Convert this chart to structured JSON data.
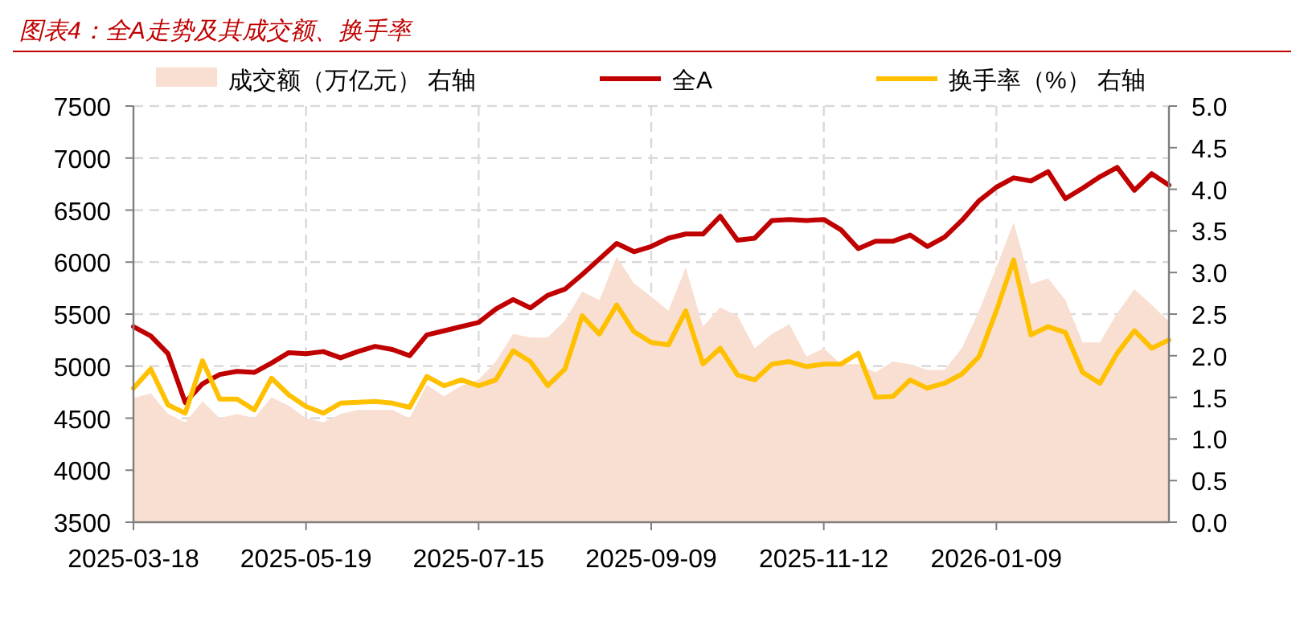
{
  "chart_data": {
    "type": "line",
    "title": "图表4：全A走势及其成交额、换手率",
    "categories": [
      "2025-03-18",
      null,
      null,
      null,
      null,
      null,
      null,
      null,
      null,
      null,
      "2025-05-19",
      null,
      null,
      null,
      null,
      null,
      null,
      null,
      null,
      null,
      "2025-07-15",
      null,
      null,
      null,
      null,
      null,
      null,
      null,
      null,
      null,
      "2025-09-09",
      null,
      null,
      null,
      null,
      null,
      null,
      null,
      null,
      null,
      "2025-11-12",
      null,
      null,
      null,
      null,
      null,
      null,
      null,
      null,
      null,
      "2026-01-09",
      null,
      null,
      null,
      null,
      null,
      null,
      null,
      null,
      null,
      null
    ],
    "series": [
      {
        "name": "成交额（万亿元） 右轴",
        "type": "area",
        "axis": "y2",
        "color": "#f8dfd1",
        "values": [
          1.49,
          1.55,
          1.3,
          1.2,
          1.45,
          1.25,
          1.3,
          1.25,
          1.5,
          1.4,
          1.25,
          1.2,
          1.3,
          1.35,
          1.35,
          1.35,
          1.25,
          1.65,
          1.51,
          1.64,
          1.71,
          1.93,
          2.26,
          2.22,
          2.22,
          2.42,
          2.77,
          2.67,
          3.19,
          2.87,
          2.71,
          2.54,
          3.06,
          2.35,
          2.58,
          2.48,
          2.09,
          2.26,
          2.38,
          1.99,
          2.09,
          1.9,
          1.9,
          1.8,
          1.93,
          1.9,
          1.83,
          1.83,
          2.09,
          2.54,
          3.06,
          3.6,
          2.86,
          2.93,
          2.67,
          2.16,
          2.16,
          2.51,
          2.8,
          2.61,
          2.41
        ]
      },
      {
        "name": "全A",
        "color": "#c00000",
        "values": [
          5380,
          5290,
          5120,
          4650,
          4830,
          4920,
          4950,
          4940,
          5030,
          5130,
          5120,
          5140,
          5080,
          5140,
          5190,
          5160,
          5100,
          5300,
          5340,
          5380,
          5420,
          5550,
          5640,
          5560,
          5680,
          5740,
          5880,
          6030,
          6180,
          6100,
          6150,
          6230,
          6270,
          6270,
          6440,
          6210,
          6230,
          6400,
          6410,
          6400,
          6410,
          6310,
          6130,
          6200,
          6200,
          6260,
          6150,
          6240,
          6400,
          6590,
          6720,
          6810,
          6780,
          6870,
          6610,
          6710,
          6820,
          6910,
          6690,
          6850,
          6740
        ]
      },
      {
        "name": "换手率（%） 右轴",
        "type": "line",
        "axis": "y2",
        "color": "#ffc000",
        "values": [
          1.61,
          1.84,
          1.41,
          1.31,
          1.94,
          1.48,
          1.48,
          1.35,
          1.73,
          1.53,
          1.39,
          1.31,
          1.43,
          1.44,
          1.45,
          1.43,
          1.38,
          1.75,
          1.64,
          1.71,
          1.64,
          1.71,
          2.06,
          1.93,
          1.64,
          1.84,
          2.48,
          2.26,
          2.61,
          2.29,
          2.16,
          2.13,
          2.54,
          1.9,
          2.09,
          1.77,
          1.71,
          1.9,
          1.93,
          1.87,
          1.9,
          1.9,
          2.03,
          1.5,
          1.51,
          1.71,
          1.61,
          1.67,
          1.78,
          1.99,
          2.54,
          3.15,
          2.25,
          2.35,
          2.28,
          1.8,
          1.67,
          2.03,
          2.3,
          2.09,
          2.19
        ]
      }
    ],
    "ylim": [
      3500,
      7500
    ],
    "yticks": [
      3500,
      4000,
      4500,
      5000,
      5500,
      6000,
      6500,
      7000,
      7500
    ],
    "y2lim": [
      0,
      5
    ],
    "y2ticks": [
      {
        "value": 0,
        "label": "0.0"
      },
      {
        "value": 0.5,
        "label": "0.5"
      },
      {
        "value": 1,
        "label": "1.0"
      },
      {
        "value": 1.5,
        "label": "1.5"
      },
      {
        "value": 2,
        "label": "2.0"
      },
      {
        "value": 2.5,
        "label": "2.5"
      },
      {
        "value": 3,
        "label": "3.0"
      },
      {
        "value": 3.5,
        "label": "3.5"
      },
      {
        "value": 4,
        "label": "4.0"
      },
      {
        "value": 4.5,
        "label": "4.5"
      },
      {
        "value": 5,
        "label": "5.0"
      }
    ],
    "grid": true,
    "legend": "top"
  }
}
